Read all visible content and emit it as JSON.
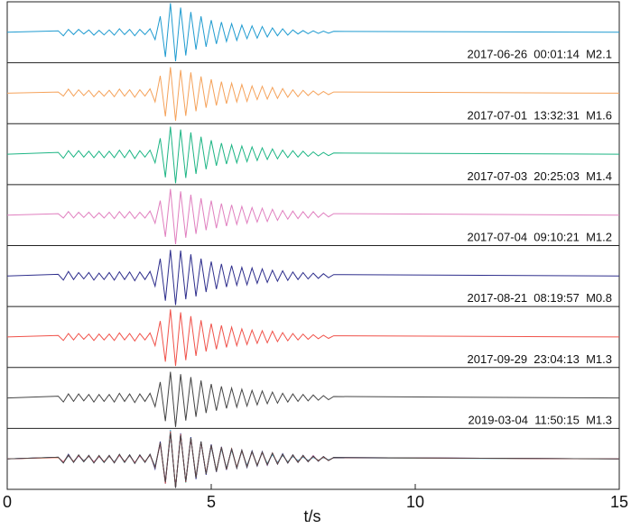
{
  "chart_data": {
    "type": "line",
    "xlabel": "t/s",
    "xlim": [
      0,
      15
    ],
    "xticks": [
      0,
      5,
      10,
      15
    ],
    "ylim": [
      -1.05,
      1.05
    ],
    "x": [
      0,
      1.25,
      1.375,
      1.5,
      1.625,
      1.75,
      1.875,
      2.0,
      2.125,
      2.25,
      2.375,
      2.5,
      2.625,
      2.75,
      2.875,
      3.0,
      3.125,
      3.25,
      3.375,
      3.5,
      3.625,
      3.75,
      3.875,
      4.0,
      4.125,
      4.25,
      4.375,
      4.5,
      4.625,
      4.75,
      4.875,
      5.0,
      5.125,
      5.25,
      5.375,
      5.5,
      5.625,
      5.75,
      5.875,
      6.0,
      6.125,
      6.25,
      6.375,
      6.5,
      6.625,
      6.75,
      6.875,
      7.0,
      7.125,
      7.25,
      7.375,
      7.5,
      7.625,
      7.75,
      7.875,
      8.0,
      15
    ],
    "series": [
      {
        "name": "2017-06-26  00:01:14  M2.1",
        "color": "#1f9bd0",
        "values": [
          0,
          0.05,
          -0.12,
          0.1,
          -0.08,
          0.1,
          -0.06,
          0.08,
          -0.1,
          0.07,
          -0.09,
          0.08,
          -0.1,
          0.12,
          -0.08,
          0.1,
          -0.12,
          0.1,
          -0.08,
          0.12,
          -0.25,
          0.55,
          -0.85,
          1.0,
          -1.0,
          0.85,
          -0.8,
          0.7,
          -0.6,
          0.55,
          -0.5,
          0.42,
          -0.4,
          0.35,
          -0.32,
          0.3,
          -0.28,
          0.25,
          -0.22,
          0.22,
          -0.2,
          0.2,
          -0.16,
          0.15,
          -0.12,
          0.12,
          -0.1,
          0.08,
          -0.06,
          0.06,
          -0.05,
          0.05,
          -0.04,
          0.04,
          -0.03,
          0.03,
          0
        ]
      },
      {
        "name": "2017-07-01  13:32:31  M1.6",
        "color": "#f5a25a",
        "values": [
          0,
          0.04,
          -0.1,
          0.14,
          -0.1,
          0.12,
          -0.08,
          0.1,
          -0.12,
          0.08,
          -0.1,
          0.1,
          -0.12,
          0.14,
          -0.1,
          0.12,
          -0.14,
          0.12,
          -0.1,
          0.15,
          -0.3,
          0.6,
          -0.8,
          0.9,
          -0.95,
          0.8,
          -0.78,
          0.72,
          -0.62,
          0.58,
          -0.5,
          0.48,
          -0.42,
          0.4,
          -0.36,
          0.35,
          -0.3,
          0.3,
          -0.28,
          0.25,
          -0.22,
          0.24,
          -0.2,
          0.2,
          -0.18,
          0.16,
          -0.14,
          0.12,
          -0.12,
          0.1,
          -0.08,
          0.08,
          -0.06,
          0.06,
          -0.05,
          0.04,
          0
        ]
      },
      {
        "name": "2017-07-03  20:25:03  M1.4",
        "color": "#1db584",
        "values": [
          0,
          0.06,
          -0.14,
          0.12,
          -0.1,
          0.12,
          -0.1,
          0.1,
          -0.12,
          0.1,
          -0.12,
          0.1,
          -0.12,
          0.14,
          -0.12,
          0.14,
          -0.15,
          0.12,
          -0.1,
          0.14,
          -0.3,
          0.55,
          -0.8,
          0.95,
          -1.0,
          0.85,
          -0.82,
          0.75,
          -0.68,
          0.6,
          -0.52,
          0.48,
          -0.4,
          0.38,
          -0.34,
          0.32,
          -0.3,
          0.28,
          -0.26,
          0.25,
          -0.22,
          0.22,
          -0.18,
          0.18,
          -0.16,
          0.14,
          -0.12,
          0.12,
          -0.1,
          0.1,
          -0.08,
          0.08,
          -0.06,
          0.06,
          -0.05,
          0.04,
          0
        ]
      },
      {
        "name": "2017-07-04  09:10:21  M1.2",
        "color": "#e07fbf",
        "values": [
          0,
          0.05,
          -0.1,
          0.12,
          -0.1,
          0.1,
          -0.08,
          0.1,
          -0.1,
          0.08,
          -0.1,
          0.1,
          -0.12,
          0.12,
          -0.1,
          0.12,
          -0.12,
          0.1,
          -0.1,
          0.14,
          -0.28,
          0.5,
          -0.75,
          0.9,
          -1.0,
          0.82,
          -0.78,
          0.7,
          -0.65,
          0.58,
          -0.52,
          0.5,
          -0.45,
          0.4,
          -0.38,
          0.35,
          -0.32,
          0.3,
          -0.28,
          0.26,
          -0.24,
          0.24,
          -0.22,
          0.2,
          -0.18,
          0.16,
          -0.14,
          0.14,
          -0.12,
          0.12,
          -0.1,
          0.12,
          -0.08,
          0.08,
          -0.06,
          0.05,
          0
        ]
      },
      {
        "name": "2017-08-21  08:19:57  M0.8",
        "color": "#2e2e8c",
        "values": [
          0,
          0.06,
          -0.14,
          0.16,
          -0.12,
          0.12,
          -0.1,
          0.12,
          -0.14,
          0.1,
          -0.12,
          0.12,
          -0.14,
          0.15,
          -0.12,
          0.14,
          -0.16,
          0.14,
          -0.12,
          0.16,
          -0.35,
          0.6,
          -0.85,
          0.9,
          -1.0,
          0.88,
          -0.8,
          0.75,
          -0.7,
          0.6,
          -0.55,
          0.5,
          -0.45,
          0.42,
          -0.38,
          0.36,
          -0.32,
          0.3,
          -0.3,
          0.28,
          -0.25,
          0.25,
          -0.22,
          0.2,
          -0.18,
          0.18,
          -0.15,
          0.14,
          -0.12,
          0.12,
          -0.1,
          0.1,
          -0.08,
          0.08,
          -0.06,
          0.05,
          0
        ]
      },
      {
        "name": "2017-09-29  23:04:13  M1.3",
        "color": "#f0524a",
        "values": [
          0,
          0.05,
          -0.12,
          0.12,
          -0.1,
          0.12,
          -0.08,
          0.1,
          -0.12,
          0.1,
          -0.1,
          0.1,
          -0.12,
          0.14,
          -0.1,
          0.12,
          -0.14,
          0.12,
          -0.1,
          0.14,
          -0.3,
          0.55,
          -0.85,
          0.95,
          -1.0,
          0.85,
          -0.8,
          0.72,
          -0.65,
          0.58,
          -0.5,
          0.46,
          -0.42,
          0.4,
          -0.36,
          0.34,
          -0.3,
          0.28,
          -0.26,
          0.24,
          -0.22,
          0.22,
          -0.2,
          0.2,
          -0.16,
          0.15,
          -0.13,
          0.12,
          -0.1,
          0.1,
          -0.08,
          0.08,
          -0.06,
          0.06,
          -0.05,
          0.04,
          0
        ]
      },
      {
        "name": "2019-03-04  11:50:15  M1.3",
        "color": "#444444",
        "values": [
          0,
          0.06,
          -0.14,
          0.14,
          -0.12,
          0.14,
          -0.1,
          0.12,
          -0.14,
          0.12,
          -0.12,
          0.12,
          -0.14,
          0.16,
          -0.12,
          0.14,
          -0.16,
          0.14,
          -0.12,
          0.16,
          -0.3,
          0.55,
          -0.8,
          0.9,
          -1.0,
          0.82,
          -0.78,
          0.72,
          -0.65,
          0.6,
          -0.52,
          0.48,
          -0.44,
          0.4,
          -0.36,
          0.34,
          -0.32,
          0.3,
          -0.28,
          0.26,
          -0.24,
          0.24,
          -0.2,
          0.2,
          -0.18,
          0.16,
          -0.14,
          0.14,
          -0.12,
          0.12,
          -0.1,
          0.1,
          -0.08,
          0.08,
          -0.06,
          0.05,
          0
        ]
      }
    ]
  }
}
